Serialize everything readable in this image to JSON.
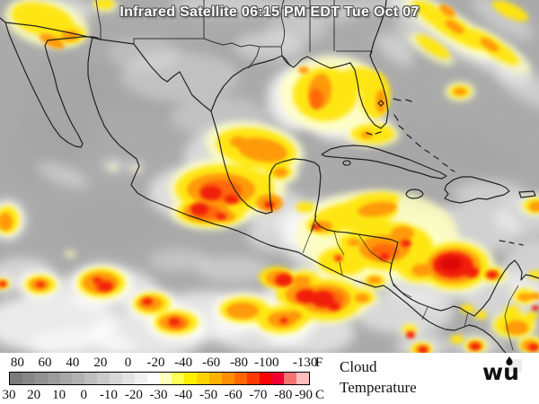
{
  "title": "Infrared Satellite 06:15 PM EDT Tue Oct 07",
  "map": {
    "background_color": "#a7a7a7",
    "coastline_color": "#161616",
    "cloud_colors": {
      "white": "#ffffff",
      "pale_yellow": "#ffffbc",
      "yellow": "#ffe400",
      "orange": "#ff9600",
      "deep_orange": "#ff6400",
      "red": "#f01800",
      "deep_red": "#dd0000"
    }
  },
  "legend": {
    "fahrenheit": {
      "unit": "F",
      "ticks": [
        {
          "label": "80",
          "pos": 2.8
        },
        {
          "label": "60",
          "pos": 12
        },
        {
          "label": "40",
          "pos": 21.3
        },
        {
          "label": "20",
          "pos": 30.6
        },
        {
          "label": "0",
          "pos": 39.8
        },
        {
          "label": "-20",
          "pos": 49.1
        },
        {
          "label": "-40",
          "pos": 58.3
        },
        {
          "label": "-60",
          "pos": 67.6
        },
        {
          "label": "-80",
          "pos": 76.9
        },
        {
          "label": "-100",
          "pos": 86.1
        },
        {
          "label": "-130",
          "pos": 99
        }
      ]
    },
    "celsius": {
      "unit": "C",
      "ticks": [
        {
          "label": "30",
          "pos": 0
        },
        {
          "label": "20",
          "pos": 8.3
        },
        {
          "label": "10",
          "pos": 16.7
        },
        {
          "label": "0",
          "pos": 25
        },
        {
          "label": "-10",
          "pos": 33.3
        },
        {
          "label": "-20",
          "pos": 41.7
        },
        {
          "label": "-30",
          "pos": 50
        },
        {
          "label": "-40",
          "pos": 58.3
        },
        {
          "label": "-50",
          "pos": 66.7
        },
        {
          "label": "-60",
          "pos": 75
        },
        {
          "label": "-70",
          "pos": 83.3
        },
        {
          "label": "-80",
          "pos": 91.7
        },
        {
          "label": "-90",
          "pos": 98.5
        }
      ]
    },
    "colorbar": [
      "#7b7b7b",
      "#868686",
      "#919191",
      "#9c9c9c",
      "#a7a7a7",
      "#b2b2b2",
      "#bebebe",
      "#cacaca",
      "#d7d7d7",
      "#e4e4e4",
      "#f1f1f1",
      "#fefefe",
      "#ffffbe",
      "#ffff55",
      "#ffee00",
      "#ffd400",
      "#ffb200",
      "#ff8e00",
      "#ff6800",
      "#ff3a00",
      "#f60400",
      "#ee0032",
      "#f97272",
      "#ffbcbc"
    ],
    "caption": {
      "line1": "Cloud",
      "line2": "Temperature"
    }
  },
  "branding": {
    "logo_text": "wu"
  }
}
